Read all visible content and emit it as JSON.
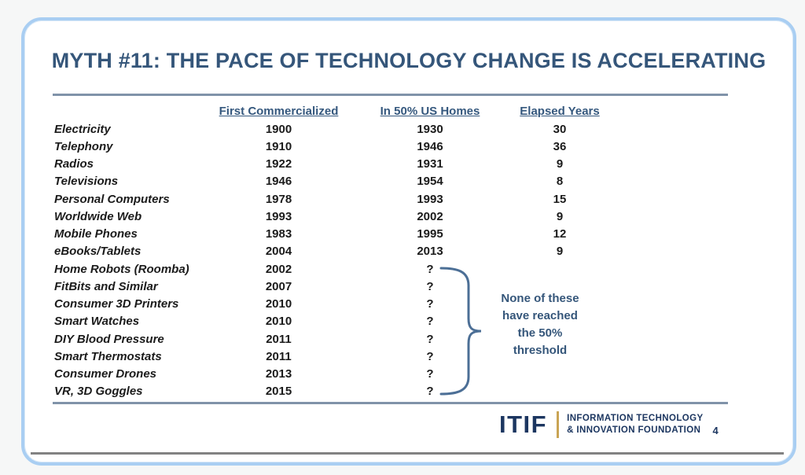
{
  "slide": {
    "title": "MYTH #11: THE PACE OF TECHNOLOGY CHANGE IS ACCELERATING",
    "page_number": "4"
  },
  "table": {
    "columns": [
      "",
      "First Commercialized",
      "In 50% US Homes",
      "Elapsed Years"
    ],
    "rows": [
      {
        "name": "Electricity",
        "first": "1900",
        "homes": "1930",
        "elapsed": "30"
      },
      {
        "name": "Telephony",
        "first": "1910",
        "homes": "1946",
        "elapsed": "36"
      },
      {
        "name": "Radios",
        "first": "1922",
        "homes": "1931",
        "elapsed": "9"
      },
      {
        "name": "Televisions",
        "first": "1946",
        "homes": "1954",
        "elapsed": "8"
      },
      {
        "name": "Personal Computers",
        "first": "1978",
        "homes": "1993",
        "elapsed": "15"
      },
      {
        "name": "Worldwide Web",
        "first": "1993",
        "homes": "2002",
        "elapsed": "9"
      },
      {
        "name": "Mobile Phones",
        "first": "1983",
        "homes": "1995",
        "elapsed": "12"
      },
      {
        "name": "eBooks/Tablets",
        "first": "2004",
        "homes": "2013",
        "elapsed": "9"
      },
      {
        "name": "Home Robots (Roomba)",
        "first": "2002",
        "homes": "?",
        "elapsed": ""
      },
      {
        "name": "FitBits and Similar",
        "first": "2007",
        "homes": "?",
        "elapsed": ""
      },
      {
        "name": "Consumer 3D Printers",
        "first": "2010",
        "homes": "?",
        "elapsed": ""
      },
      {
        "name": "Smart Watches",
        "first": "2010",
        "homes": "?",
        "elapsed": ""
      },
      {
        "name": "DIY Blood Pressure",
        "first": "2011",
        "homes": "?",
        "elapsed": ""
      },
      {
        "name": "Smart Thermostats",
        "first": "2011",
        "homes": "?",
        "elapsed": ""
      },
      {
        "name": "Consumer Drones",
        "first": "2013",
        "homes": "?",
        "elapsed": ""
      },
      {
        "name": "VR, 3D Goggles",
        "first": "2015",
        "homes": "?",
        "elapsed": ""
      }
    ]
  },
  "annotation": {
    "text": "None of these\nhave reached\nthe 50%\nthreshold"
  },
  "logo": {
    "acronym": "ITIF",
    "line1": "INFORMATION TECHNOLOGY",
    "line2": "& INNOVATION FOUNDATION"
  },
  "colors": {
    "title_navy": "#35567a",
    "logo_navy": "#1c3660",
    "gold": "#c9a454",
    "border_blue": "#a9cef2",
    "rule_slate": "#8093a9",
    "rule_gray": "#828282",
    "body_text": "#1b1b1b",
    "brace_blue": "#4c6f96"
  }
}
